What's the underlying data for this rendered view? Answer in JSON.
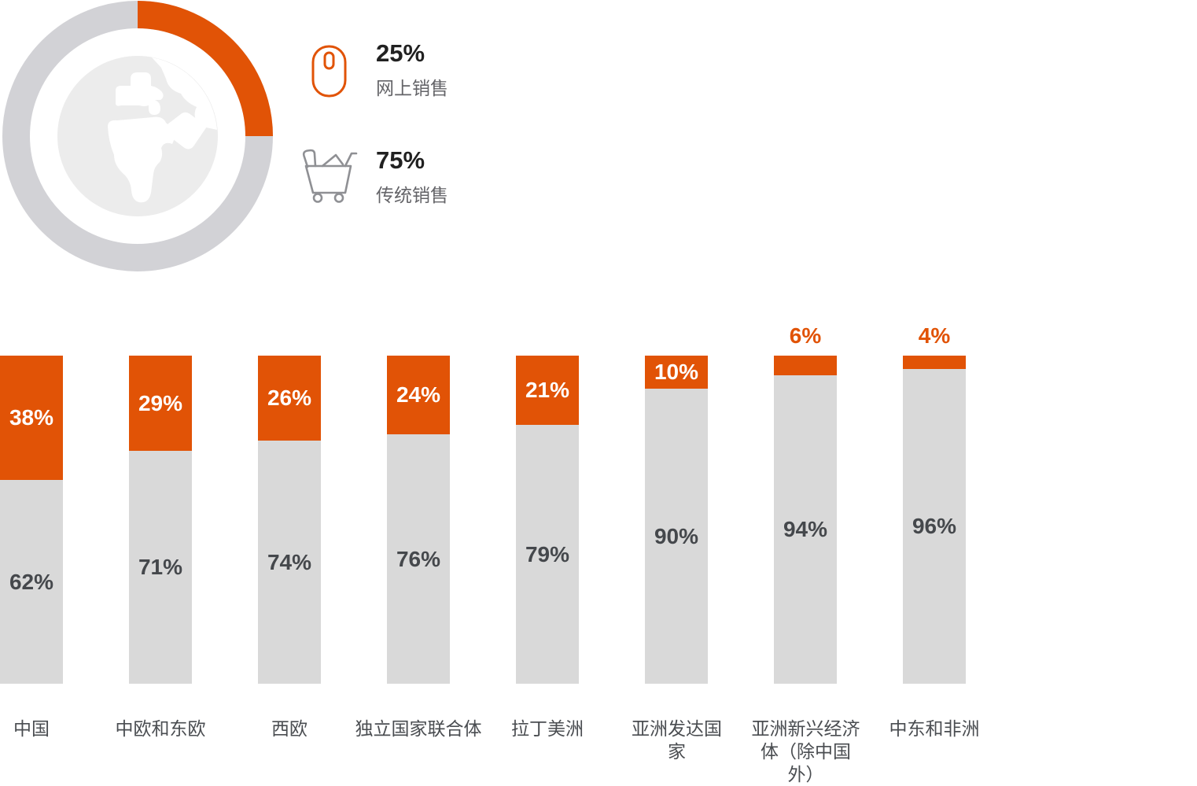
{
  "legend": {
    "items": [
      {
        "icon": "mouse-icon",
        "value": "25%",
        "label": "网上销售"
      },
      {
        "icon": "cart-icon",
        "value": "75%",
        "label": "传统销售"
      }
    ]
  },
  "colors": {
    "orange": "#E15306",
    "bar_gray": "#D9D9D9",
    "ring_gray": "#D2D2D6",
    "globe_bg": "#ECECEC",
    "land_white": "#FFFFFF",
    "value_dark": "#45484C",
    "value_white": "#FFFFFF",
    "near_black": "#212121",
    "category_gray": "#4A4D51",
    "legend_label_gray": "#646468",
    "cart_icon_gray": "#8F9094"
  },
  "chart_data": [
    {
      "type": "pie",
      "donut": true,
      "start_angle_deg": 0,
      "direction": "clockwise",
      "center_icon": "globe",
      "slices": [
        {
          "label": "网上销售",
          "value": 25,
          "color": "#E15306"
        },
        {
          "label": "传统销售",
          "value": 75,
          "color": "#D2D2D6"
        }
      ]
    },
    {
      "type": "bar",
      "stacked": true,
      "orientation": "vertical",
      "value_suffix": "%",
      "ylim": [
        0,
        100
      ],
      "grid": false,
      "legend_position": "top-left",
      "categories": [
        "中国",
        "中欧和东欧",
        "西欧",
        "独立国家联合体",
        "拉丁美洲",
        "亚洲发达国家",
        "亚洲新兴经济体（除中国外）",
        "中东和非洲"
      ],
      "series": [
        {
          "name": "网上销售",
          "color": "#E15306",
          "values": [
            38,
            29,
            26,
            24,
            21,
            10,
            6,
            4
          ]
        },
        {
          "name": "传统销售",
          "color": "#D9D9D9",
          "values": [
            62,
            71,
            74,
            76,
            79,
            90,
            94,
            96
          ]
        }
      ],
      "small_value_labels_outside": [
        "6%",
        "4%"
      ]
    }
  ]
}
